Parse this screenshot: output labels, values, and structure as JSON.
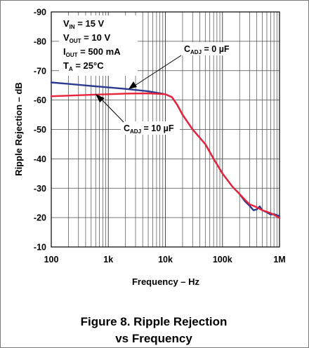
{
  "figure": {
    "caption_line1": "Figure 8. Ripple Rejection",
    "caption_line2": "vs Frequency"
  },
  "conditions": [
    {
      "main": "V",
      "sub": "IN",
      "rest": " = 15 V"
    },
    {
      "main": "V",
      "sub": "OUT",
      "rest": " = 10 V"
    },
    {
      "main": "I",
      "sub": "OUT",
      "rest": " = 500 mA"
    },
    {
      "main": "T",
      "sub": "A",
      "rest": " = 25°C"
    }
  ],
  "annotations": [
    {
      "main": "C",
      "sub": "ADJ",
      "rest": " = 0 µF"
    },
    {
      "main": "C",
      "sub": "ADJ",
      "rest": " = 10 µF"
    }
  ],
  "colors": {
    "series_0uF": "#2b3a8f",
    "series_10uF": "#e8243a",
    "grid": "#4a4a4a"
  },
  "chart_data": {
    "type": "line",
    "xlabel": "Frequency – Hz",
    "ylabel": "Ripple Rejection – dB",
    "x_scale": "log",
    "xlim": [
      100,
      1000000
    ],
    "ylim": [
      -10,
      -90
    ],
    "x_ticks": [
      "100",
      "1k",
      "10k",
      "100k",
      "1M"
    ],
    "y_ticks": [
      "-90",
      "-80",
      "-70",
      "-60",
      "-50",
      "-40",
      "-30",
      "-20",
      "-10"
    ],
    "grid": true,
    "series": [
      {
        "name": "CADJ = 0 µF",
        "x": [
          100,
          200,
          500,
          1000,
          2000,
          5000,
          10000,
          13000,
          16000,
          20000,
          30000,
          50000,
          70000,
          100000,
          150000,
          200000,
          250000,
          300000,
          350000,
          400000,
          450000,
          500000,
          600000,
          700000,
          800000,
          1000000
        ],
        "y": [
          -66,
          -65.5,
          -64.8,
          -64.3,
          -63.8,
          -63,
          -62,
          -61,
          -58.5,
          -55,
          -50,
          -45,
          -40,
          -35,
          -30.5,
          -28,
          -25.5,
          -24,
          -22.5,
          -22.8,
          -23.8,
          -22.5,
          -21.8,
          -21,
          -21.2,
          -20.5
        ]
      },
      {
        "name": "CADJ = 10 µF",
        "x": [
          100,
          200,
          500,
          1000,
          2000,
          5000,
          10000,
          13000,
          16000,
          20000,
          30000,
          50000,
          70000,
          100000,
          150000,
          200000,
          250000,
          300000,
          350000,
          400000,
          450000,
          500000,
          600000,
          700000,
          800000,
          1000000
        ],
        "y": [
          -61.3,
          -61.5,
          -61.8,
          -62,
          -62.2,
          -62.3,
          -62,
          -61,
          -58.5,
          -55,
          -50,
          -45,
          -40,
          -35,
          -30.5,
          -28,
          -26,
          -24.5,
          -24,
          -23.5,
          -23,
          -22.5,
          -22,
          -21.5,
          -21,
          -19.8
        ]
      }
    ]
  }
}
